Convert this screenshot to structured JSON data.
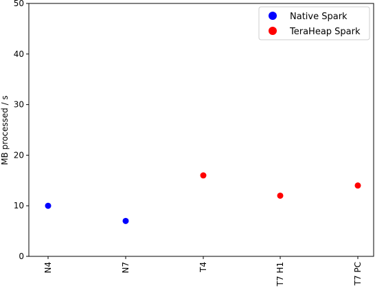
{
  "chart_data": {
    "type": "scatter",
    "categories": [
      "N4",
      "N7",
      "T4",
      "T7 H1",
      "T7 PC"
    ],
    "series": [
      {
        "name": "Native Spark",
        "color": "#0000ff",
        "points": [
          {
            "x": "N4",
            "y": 10
          },
          {
            "x": "N7",
            "y": 7
          }
        ]
      },
      {
        "name": "TeraHeap Spark",
        "color": "#ff0000",
        "points": [
          {
            "x": "T4",
            "y": 16
          },
          {
            "x": "T7 H1",
            "y": 12
          },
          {
            "x": "T7 PC",
            "y": 14
          }
        ]
      }
    ],
    "xlabel": "",
    "ylabel": "MB processed / s",
    "ylim": [
      0,
      50
    ],
    "yticks": [
      0,
      10,
      20,
      30,
      40,
      50
    ],
    "grid": false,
    "legend": "top-right"
  }
}
